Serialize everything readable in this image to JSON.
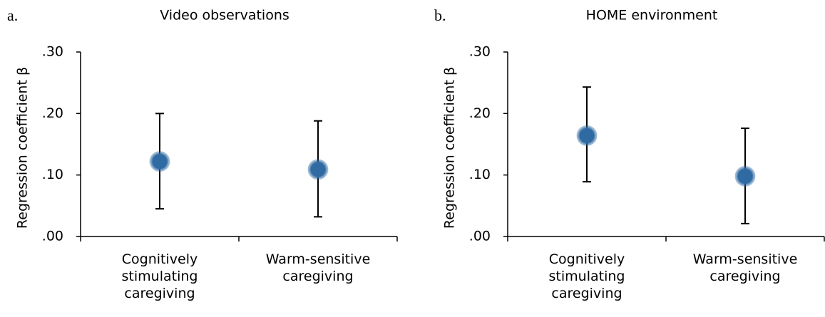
{
  "chart_data": [
    {
      "type": "dot_errorbar",
      "panel_label": "a.",
      "title": "Video observations",
      "y_label": "Regression coefficient β",
      "categories": [
        "Cognitively stimulating caregiving",
        "Warm-sensitive caregiving"
      ],
      "values": [
        0.122,
        0.109
      ],
      "ci_low": [
        0.045,
        0.032
      ],
      "ci_high": [
        0.2,
        0.188
      ],
      "color": "#2f6aa3",
      "ylim": [
        0,
        0.3
      ],
      "yticks": [
        {
          "value": 0,
          "label": ".00"
        },
        {
          "value": 0.1,
          "label": ".10"
        },
        {
          "value": 0.2,
          "label": ".20"
        },
        {
          "value": 0.3,
          "label": ".30"
        }
      ]
    },
    {
      "type": "dot_errorbar",
      "panel_label": "b.",
      "title": "HOME environment",
      "y_label": "Regression coefficient β",
      "categories": [
        "Cognitively stimulating caregiving",
        "Warm-sensitive caregiving"
      ],
      "values": [
        0.164,
        0.098
      ],
      "ci_low": [
        0.089,
        0.021
      ],
      "ci_high": [
        0.243,
        0.176
      ],
      "color": "#2f6aa3",
      "ylim": [
        0,
        0.3
      ],
      "yticks": [
        {
          "value": 0,
          "label": ".00"
        },
        {
          "value": 0.1,
          "label": ".10"
        },
        {
          "value": 0.2,
          "label": ".20"
        },
        {
          "value": 0.3,
          "label": ".30"
        }
      ]
    }
  ]
}
